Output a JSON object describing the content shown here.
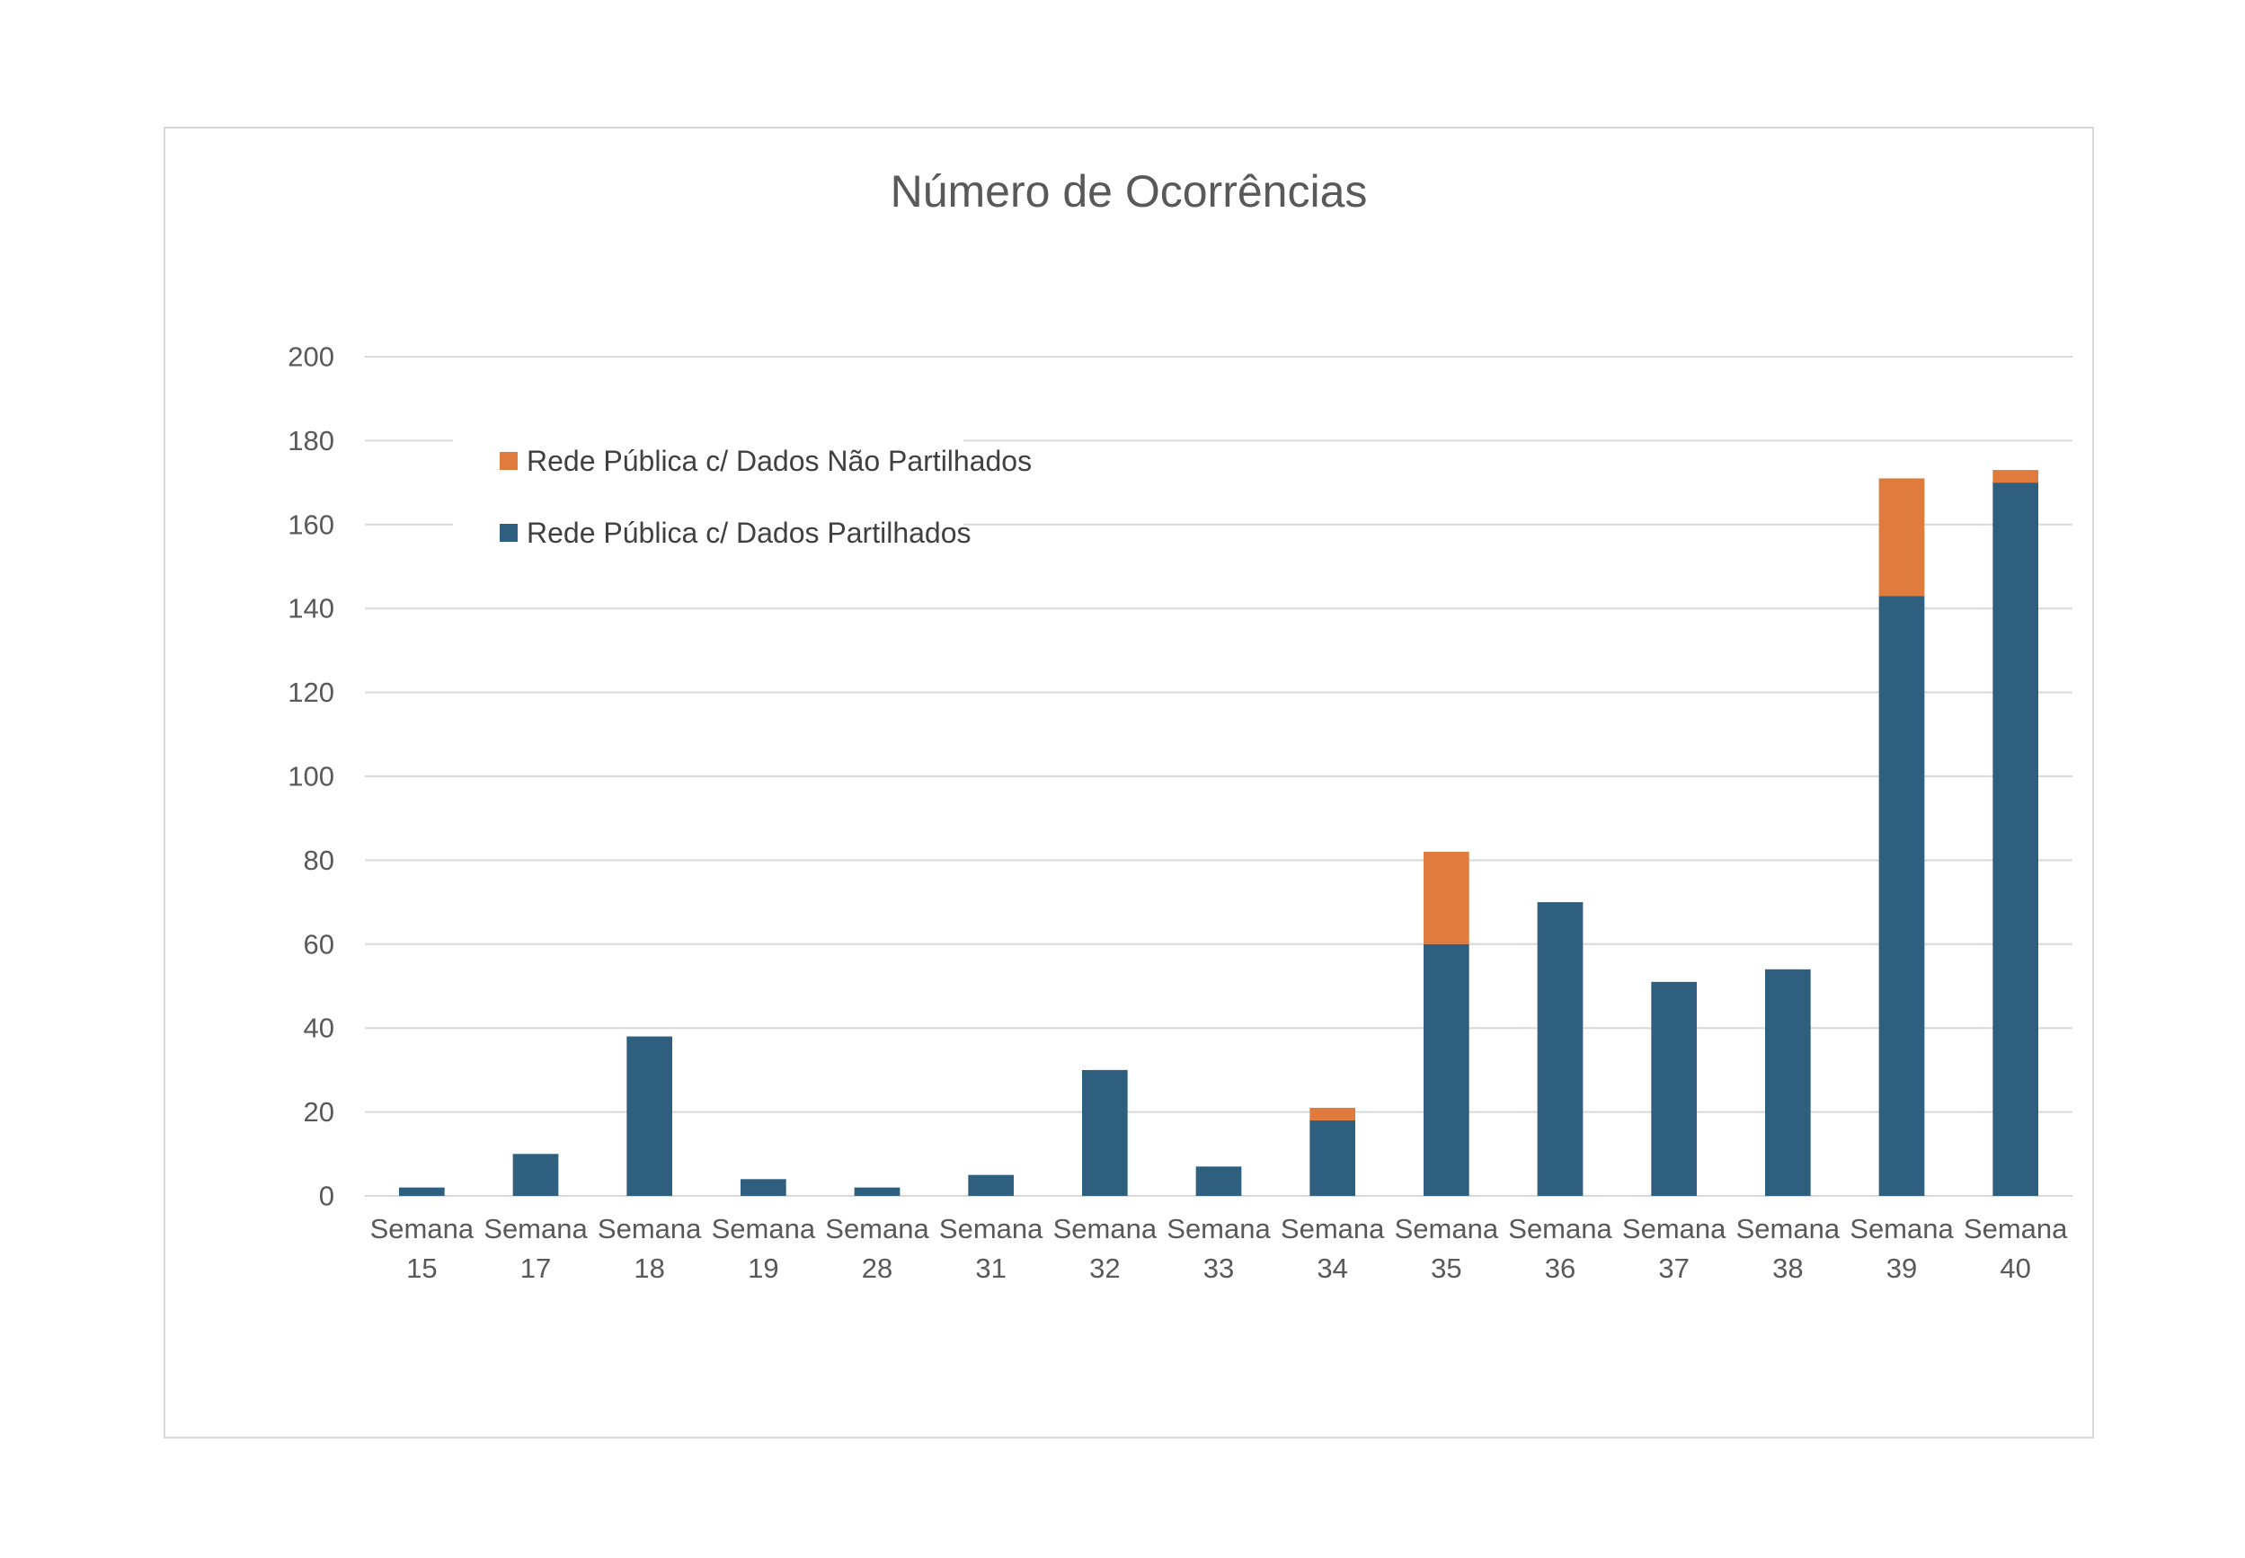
{
  "chart_data": {
    "type": "bar",
    "stacked": true,
    "title": "Número de Ocorrências",
    "xlabel": "",
    "ylabel": "",
    "ylim": [
      0,
      200
    ],
    "yticks": [
      0,
      20,
      40,
      60,
      80,
      100,
      120,
      140,
      160,
      180,
      200
    ],
    "grid": true,
    "legend_position": "top-left",
    "categories": [
      [
        "Semana",
        "15"
      ],
      [
        "Semana",
        "17"
      ],
      [
        "Semana",
        "18"
      ],
      [
        "Semana",
        "19"
      ],
      [
        "Semana",
        "28"
      ],
      [
        "Semana",
        "31"
      ],
      [
        "Semana",
        "32"
      ],
      [
        "Semana",
        "33"
      ],
      [
        "Semana",
        "34"
      ],
      [
        "Semana",
        "35"
      ],
      [
        "Semana",
        "36"
      ],
      [
        "Semana",
        "37"
      ],
      [
        "Semana",
        "38"
      ],
      [
        "Semana",
        "39"
      ],
      [
        "Semana",
        "40"
      ]
    ],
    "series": [
      {
        "name": "Rede Pública c/ Dados Partilhados",
        "color": "#2e5f7f",
        "values": [
          2,
          10,
          38,
          4,
          2,
          5,
          30,
          7,
          18,
          60,
          70,
          51,
          54,
          143,
          170
        ]
      },
      {
        "name": "Rede Pública c/  Dados Não Partilhados",
        "color": "#e07b3e",
        "values": [
          0,
          0,
          0,
          0,
          0,
          0,
          0,
          0,
          3,
          22,
          0,
          0,
          0,
          28,
          3
        ]
      }
    ]
  }
}
